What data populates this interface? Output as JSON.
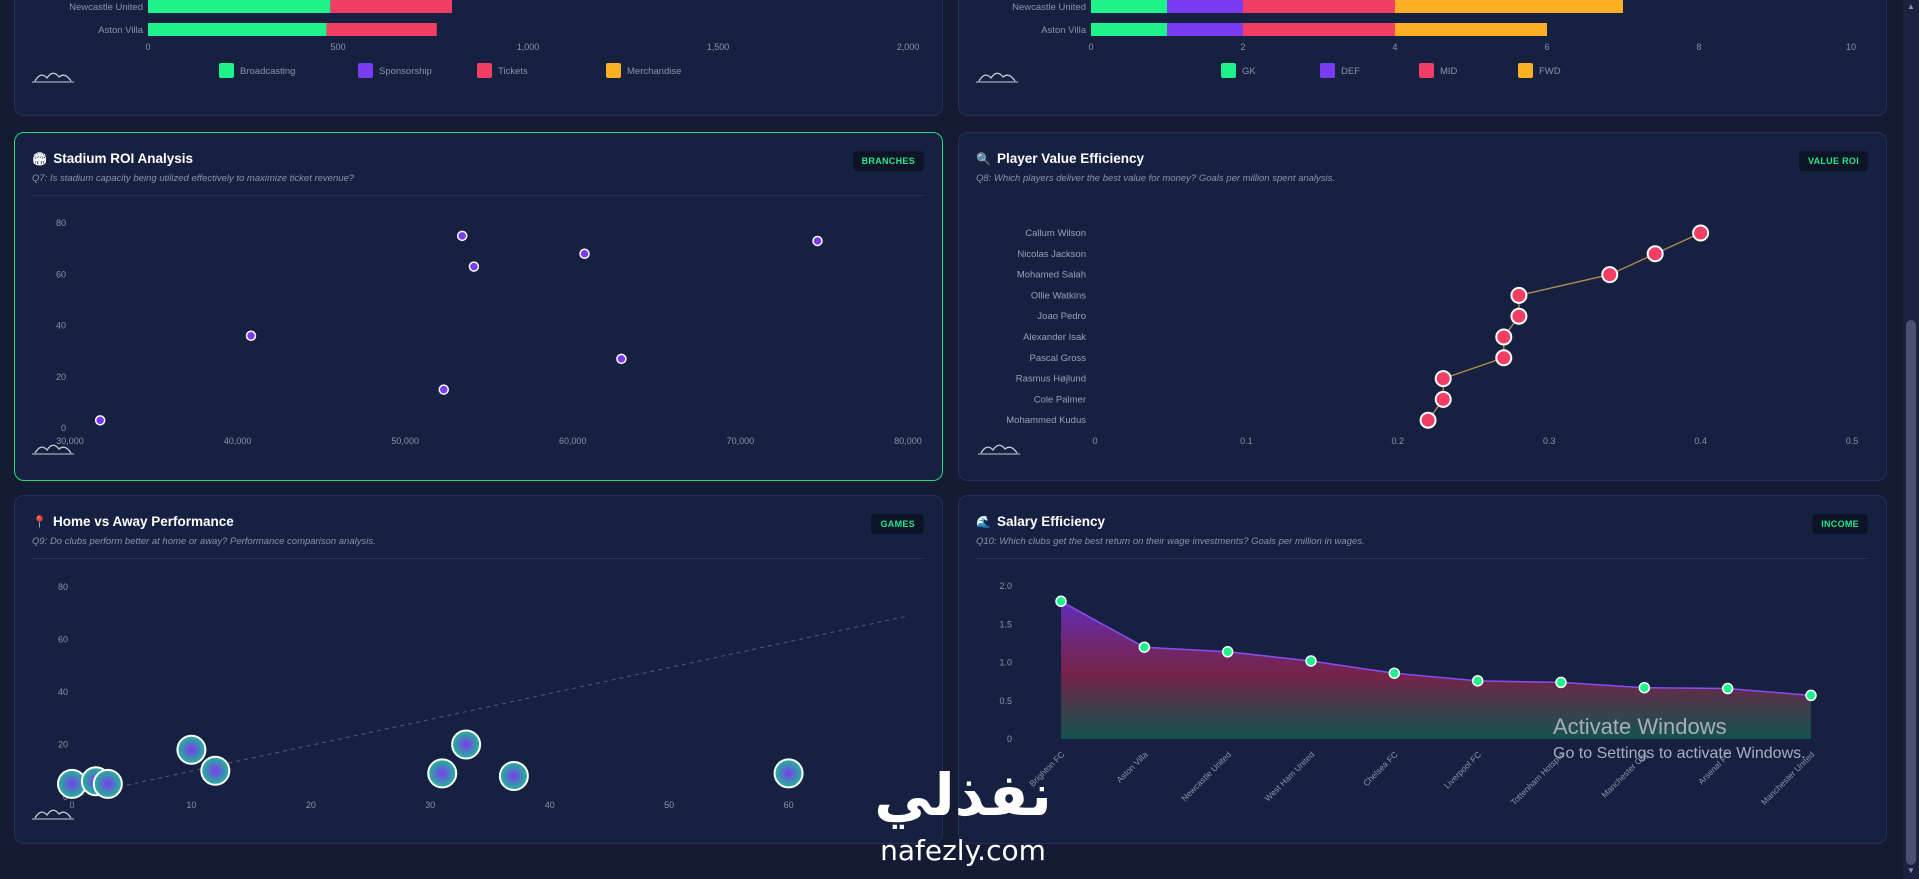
{
  "panels": {
    "revenue": {
      "legend": [
        "Broadcasting",
        "Sponsorship",
        "Tickets",
        "Merchandise"
      ]
    },
    "squad": {
      "legend": [
        "GK",
        "DEF",
        "MID",
        "FWD"
      ]
    },
    "q7": {
      "icon": "stadium-icon",
      "title": "Stadium ROI Analysis",
      "subtitle": "Q7: Is stadium capacity being utilized effectively to maximize ticket revenue?",
      "badge": "BRANCHES"
    },
    "q8": {
      "icon": "magnifier-icon",
      "title": "Player Value Efficiency",
      "subtitle": "Q8: Which players deliver the best value for money? Goals per million spent analysis.",
      "badge": "VALUE ROI"
    },
    "q9": {
      "icon": "pin-icon",
      "title": "Home vs Away Performance",
      "subtitle": "Q9: Do clubs perform better at home or away? Performance comparison analysis.",
      "badge": "GAMES"
    },
    "q10": {
      "icon": "wave-icon",
      "title": "Salary Efficiency",
      "subtitle": "Q10: Which clubs get the best return on their wage investments? Goals per million in wages.",
      "badge": "INCOME"
    }
  },
  "colors": {
    "green": "#1ef28a",
    "purple": "#7a3cf0",
    "red": "#f23d64",
    "orange": "#fbb024"
  },
  "chart_data": [
    {
      "id": "revenue",
      "type": "bar",
      "orientation": "horizontal",
      "stacked": true,
      "categories": [
        "Newcastle United",
        "Aston Villa"
      ],
      "series": [
        {
          "name": "Broadcasting",
          "values": [
            480,
            470
          ]
        },
        {
          "name": "Sponsorship",
          "values": [
            0,
            0
          ]
        },
        {
          "name": "Tickets",
          "values": [
            320,
            290
          ]
        },
        {
          "name": "Merchandise",
          "values": [
            0,
            0
          ]
        }
      ],
      "xlim": [
        0,
        2000
      ],
      "xticks": [
        "0",
        "500",
        "1,000",
        "1,500",
        "2,000"
      ],
      "legend_position": "bottom"
    },
    {
      "id": "squad",
      "type": "bar",
      "orientation": "horizontal",
      "stacked": true,
      "categories": [
        "Newcastle United",
        "Aston Villa"
      ],
      "series": [
        {
          "name": "GK",
          "values": [
            1,
            1
          ]
        },
        {
          "name": "DEF",
          "values": [
            1,
            1
          ]
        },
        {
          "name": "MID",
          "values": [
            2,
            2
          ]
        },
        {
          "name": "FWD",
          "values": [
            3,
            2
          ]
        }
      ],
      "xlim": [
        0,
        10
      ],
      "xticks": [
        "0",
        "2",
        "4",
        "6",
        "8",
        "10"
      ],
      "legend_position": "bottom"
    },
    {
      "id": "q7",
      "type": "scatter",
      "x": [
        31800,
        40800,
        52300,
        53400,
        54100,
        60700,
        62900,
        74600
      ],
      "y": [
        3,
        36,
        15,
        75,
        63,
        68,
        27,
        73
      ],
      "xlim": [
        30000,
        80000
      ],
      "ylim": [
        0,
        80
      ],
      "xticks": [
        "30,000",
        "40,000",
        "50,000",
        "60,000",
        "70,000",
        "80,000"
      ],
      "yticks": [
        "0",
        "20",
        "40",
        "60",
        "80"
      ],
      "grid": false
    },
    {
      "id": "q8",
      "type": "line",
      "orientation": "horizontal",
      "categories": [
        "Callum Wilson",
        "Nicolas Jackson",
        "Mohamed Salah",
        "Ollie Watkins",
        "Joao Pedro",
        "Alexander Isak",
        "Pascal Gross",
        "Rasmus Højlund",
        "Cole Palmer",
        "Mohammed Kudus"
      ],
      "values": [
        0.4,
        0.37,
        0.34,
        0.28,
        0.28,
        0.27,
        0.27,
        0.23,
        0.23,
        0.22
      ],
      "xlim": [
        0,
        0.5
      ],
      "xticks": [
        "0",
        "0.1",
        "0.2",
        "0.3",
        "0.4",
        "0.5"
      ],
      "grid": false
    },
    {
      "id": "q9",
      "type": "scatter",
      "bubble": true,
      "x": [
        0,
        2,
        3,
        10,
        12,
        31,
        33,
        37,
        60
      ],
      "y": [
        5,
        6,
        5,
        18,
        10,
        9,
        20,
        8,
        9
      ],
      "trend": {
        "x": [
          0,
          70
        ],
        "y": [
          0,
          69
        ]
      },
      "xlim": [
        0,
        70
      ],
      "ylim": [
        0,
        80
      ],
      "xticks": [
        "0",
        "10",
        "20",
        "30",
        "40",
        "50",
        "60"
      ],
      "yticks": [
        "0",
        "20",
        "40",
        "60",
        "80"
      ],
      "grid": false
    },
    {
      "id": "q10",
      "type": "area",
      "categories": [
        "Brighton FC",
        "Aston Villa",
        "Newcastle United",
        "West Ham United",
        "Chelsea FC",
        "Liverpool FC",
        "Tottenham Hotspur",
        "Manchester City",
        "Arsenal FC",
        "Manchester United"
      ],
      "values": [
        1.8,
        1.2,
        1.14,
        1.02,
        0.86,
        0.76,
        0.74,
        0.67,
        0.66,
        0.57
      ],
      "ylim": [
        0,
        2.0
      ],
      "yticks": [
        "0",
        "0.5",
        "1.0",
        "1.5",
        "2.0"
      ],
      "grid": false
    }
  ],
  "overlay": {
    "activate_title": "Activate Windows",
    "activate_sub": "Go to Settings to activate Windows.",
    "watermark_ar": "نفذلي",
    "watermark_en": "nafezly.com"
  }
}
